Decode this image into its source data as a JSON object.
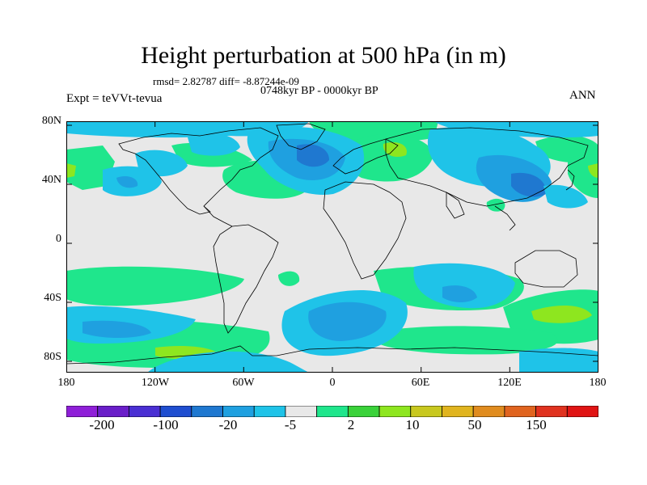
{
  "header": {
    "title": "Height perturbation at 500 hPa (in m)",
    "stats": "rmsd= 2.82787  diff= -8.87244e-09",
    "period": "0748kyr BP - 0000kyr BP",
    "expt": "Expt = teVVt-tevua",
    "season": "ANN"
  },
  "axes": {
    "lat_labels": [
      "80N",
      "40N",
      "0",
      "40S",
      "80S"
    ],
    "lon_labels": [
      "180",
      "120W",
      "60W",
      "0",
      "60E",
      "120E",
      "180"
    ]
  },
  "colorbar": {
    "colors": [
      "#8f1fd8",
      "#6a1ec9",
      "#4a2fd3",
      "#1f4ed0",
      "#1f78d0",
      "#1fa0e0",
      "#1fc3e8",
      "#e8e8e8",
      "#1fe68c",
      "#3ad23a",
      "#8ee61f",
      "#c8c81f",
      "#e0b41f",
      "#e08c1f",
      "#e0641f",
      "#e0321f",
      "#e01414"
    ],
    "labels": [
      "-200",
      "-100",
      "-20",
      "-5",
      "2",
      "10",
      "50",
      "150"
    ]
  },
  "legend_palette": {
    "background": "#e8e8e8",
    "neg_light": "#1fc3e8",
    "neg_mid": "#1fa0e0",
    "neg_dark": "#1f78d0",
    "pos_light": "#1fe68c",
    "pos_mid": "#3ad23a",
    "pos_strong": "#8ee61f"
  }
}
